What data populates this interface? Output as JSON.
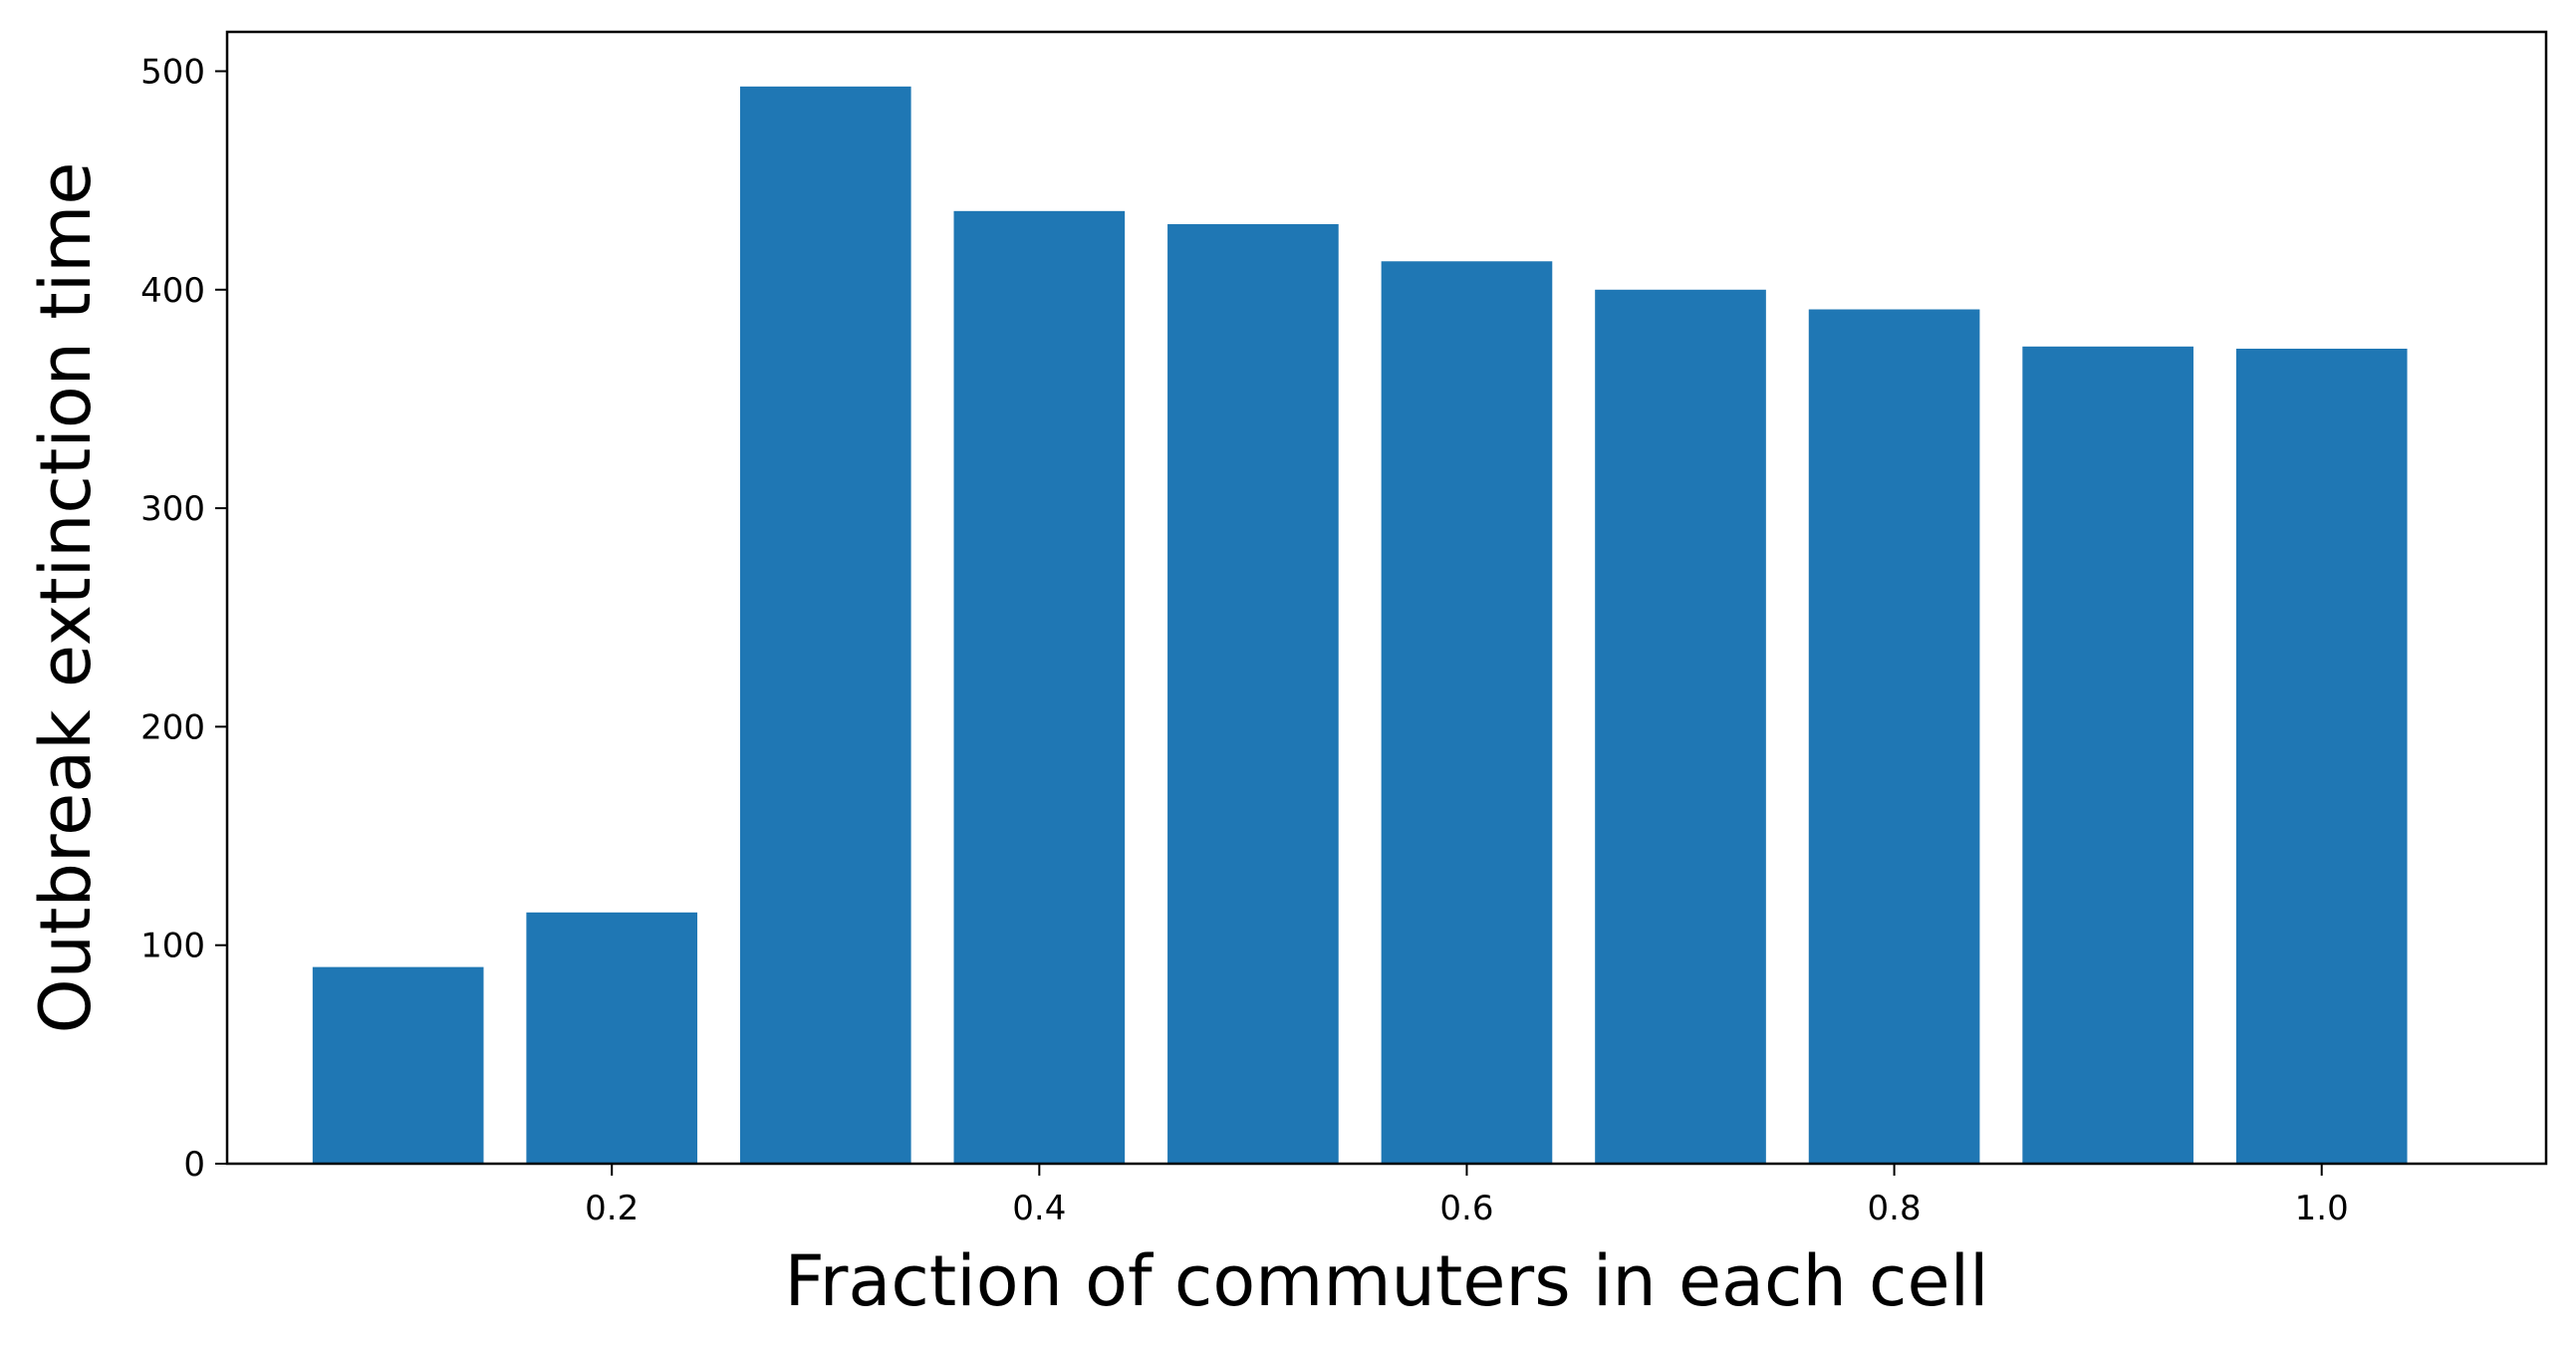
{
  "chart_data": {
    "type": "bar",
    "x": [
      0.1,
      0.2,
      0.3,
      0.4,
      0.5,
      0.6,
      0.7,
      0.8,
      0.9,
      1.0
    ],
    "values": [
      90,
      115,
      493,
      436,
      430,
      413,
      400,
      391,
      374,
      373
    ],
    "bar_width": 0.08,
    "xlim": [
      0.02,
      1.105
    ],
    "ylim": [
      0,
      518
    ],
    "xticks": [
      0.2,
      0.4,
      0.6,
      0.8,
      1.0
    ],
    "xtick_labels": [
      "0.2",
      "0.4",
      "0.6",
      "0.8",
      "1.0"
    ],
    "yticks": [
      0,
      100,
      200,
      300,
      400,
      500
    ],
    "ytick_labels": [
      "0",
      "100",
      "200",
      "300",
      "400",
      "500"
    ],
    "xlabel": "Fraction of commuters in each cell",
    "ylabel": "Outbreak extinction time",
    "grid": false,
    "bar_color": "#1f77b4"
  }
}
